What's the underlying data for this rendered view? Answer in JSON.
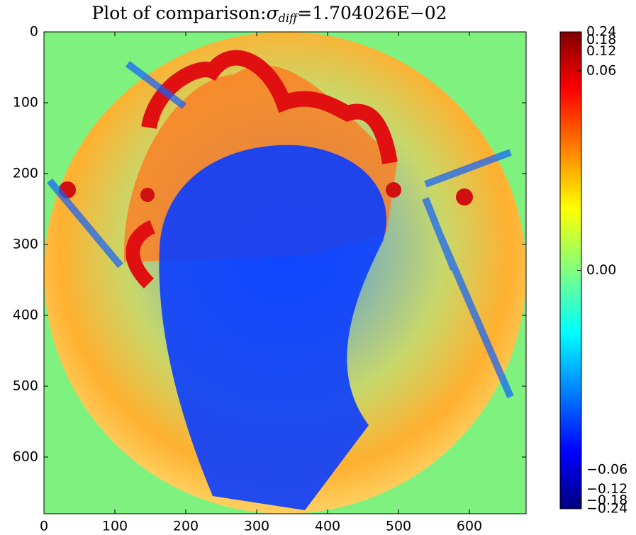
{
  "chart_data": {
    "type": "heatmap",
    "title": {
      "text": "Plot of comparison",
      "separator": ":",
      "symbol": "σ",
      "subscript": "diff",
      "value_text": "=1.704026E−02"
    },
    "xlim": [
      0,
      680
    ],
    "ylim": [
      680,
      0
    ],
    "xticks": [
      0,
      100,
      200,
      300,
      400,
      500,
      600
    ],
    "yticks": [
      0,
      100,
      200,
      300,
      400,
      500,
      600
    ],
    "colormap": "jet",
    "colorbar_scale": "symlog",
    "colorbar_lim": [
      -0.24,
      0.24
    ],
    "colorbar_linthresh": 0.06,
    "colorbar_ticks": [
      0.24,
      0.18,
      0.12,
      0.06,
      {
        "value": 0,
        "label": "0.00"
      },
      {
        "value": -0.06,
        "label": "−0.06"
      },
      {
        "value": -0.12,
        "label": "−0.12"
      },
      {
        "value": -0.18,
        "label": "−0.18"
      },
      {
        "value": -0.24,
        "label": "−0.24"
      }
    ]
  }
}
